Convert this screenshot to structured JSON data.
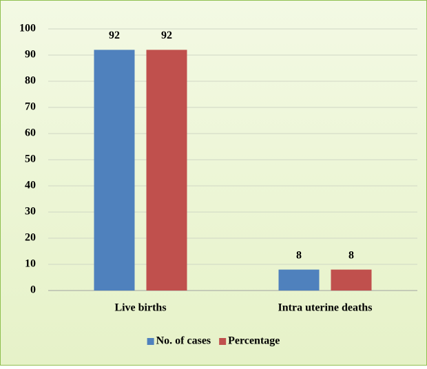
{
  "chart_data": {
    "type": "bar",
    "categories": [
      "Live births",
      "Intra uterine deaths"
    ],
    "series": [
      {
        "name": "No. of cases",
        "color": "#4f81bd",
        "values": [
          92,
          8
        ]
      },
      {
        "name": "Percentage",
        "color": "#c0504d",
        "values": [
          92,
          8
        ]
      }
    ],
    "ylim": [
      0,
      100
    ],
    "yticks": [
      0,
      10,
      20,
      30,
      40,
      50,
      60,
      70,
      80,
      90,
      100
    ],
    "grid": true,
    "legend": "bottom"
  }
}
